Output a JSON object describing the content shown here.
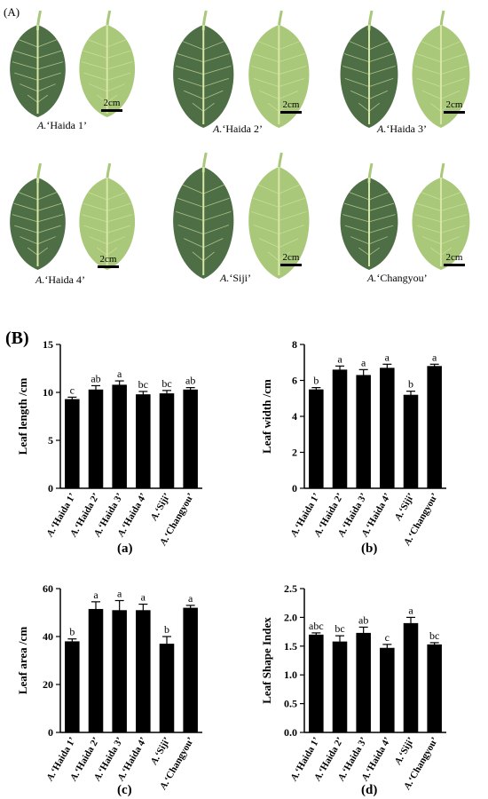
{
  "panel_a_tag": "(A)",
  "panel_b_tag": "(B)",
  "photos": [
    {
      "label_prefix": "A.",
      "label_name": "‘Haida 1’",
      "scale": "2cm"
    },
    {
      "label_prefix": "A.",
      "label_name": "‘Haida 2’",
      "scale": "2cm"
    },
    {
      "label_prefix": "A.",
      "label_name": "‘Haida 3’",
      "scale": "2cm"
    },
    {
      "label_prefix": "A.",
      "label_name": "‘Haida 4’",
      "scale": "2cm"
    },
    {
      "label_prefix": "A.",
      "label_name": "‘Siji’",
      "scale": "2cm"
    },
    {
      "label_prefix": "A.",
      "label_name": "‘Changyou’",
      "scale": "2cm"
    }
  ],
  "colors": {
    "bar": "#000000",
    "leaf_dark": "#4e6e46",
    "leaf_light": "#a9c87a",
    "vein": "#d8e6a6"
  },
  "chart_data": [
    {
      "type": "bar",
      "sublabel": "(a)",
      "ylabel": "Leaf length /cm",
      "ylim": [
        0,
        15
      ],
      "yticks": [
        0,
        5,
        10,
        15
      ],
      "categories": [
        "A.‘Haida 1’",
        "A.‘Haida 2’",
        "A.‘Haida 3’",
        "A.‘Haida 4’",
        "A.‘Siji’",
        "A.‘Changyou’"
      ],
      "values": [
        9.3,
        10.3,
        10.8,
        9.8,
        9.9,
        10.3
      ],
      "errors": [
        0.2,
        0.4,
        0.4,
        0.3,
        0.3,
        0.2
      ],
      "letters": [
        "c",
        "ab",
        "a",
        "bc",
        "bc",
        "ab"
      ]
    },
    {
      "type": "bar",
      "sublabel": "(b)",
      "ylabel": "Leaf width /cm",
      "ylim": [
        0,
        8
      ],
      "yticks": [
        0,
        2,
        4,
        6,
        8
      ],
      "categories": [
        "A.‘Haida 1’",
        "A.‘Haida 2’",
        "A.‘Haida 3’",
        "A.‘Haida 4’",
        "A.‘Siji’",
        "A.‘Changyou’"
      ],
      "values": [
        5.5,
        6.6,
        6.3,
        6.7,
        5.2,
        6.8
      ],
      "errors": [
        0.1,
        0.2,
        0.3,
        0.2,
        0.2,
        0.1
      ],
      "letters": [
        "b",
        "a",
        "a",
        "a",
        "b",
        "a"
      ]
    },
    {
      "type": "bar",
      "sublabel": "(c)",
      "ylabel": "Leaf area /cm",
      "ylim": [
        0,
        60
      ],
      "yticks": [
        0,
        20,
        40,
        60
      ],
      "categories": [
        "A.‘Haida 1’",
        "A.‘Haida 2’",
        "A.‘Haida 3’",
        "A.‘Haida 4’",
        "A.‘Siji’",
        "A.‘Changyou’"
      ],
      "values": [
        38,
        51.5,
        51,
        51,
        37,
        52
      ],
      "errors": [
        1,
        3,
        4,
        2.5,
        3,
        1
      ],
      "letters": [
        "b",
        "a",
        "a",
        "a",
        "b",
        "a"
      ]
    },
    {
      "type": "bar",
      "sublabel": "(d)",
      "ylabel": "Leaf Shape Index",
      "ylim": [
        0,
        2.5
      ],
      "yticks": [
        0.0,
        0.5,
        1.0,
        1.5,
        2.0,
        2.5
      ],
      "categories": [
        "A.‘Haida 1’",
        "A.‘Haida 2’",
        "A.‘Haida 3’",
        "A.‘Haida 4’",
        "A.‘Siji’",
        "A.‘Changyou’"
      ],
      "values": [
        1.7,
        1.58,
        1.73,
        1.47,
        1.9,
        1.53
      ],
      "errors": [
        0.03,
        0.1,
        0.1,
        0.06,
        0.1,
        0.03
      ],
      "letters": [
        "abc",
        "bc",
        "ab",
        "c",
        "a",
        "bc"
      ]
    }
  ]
}
